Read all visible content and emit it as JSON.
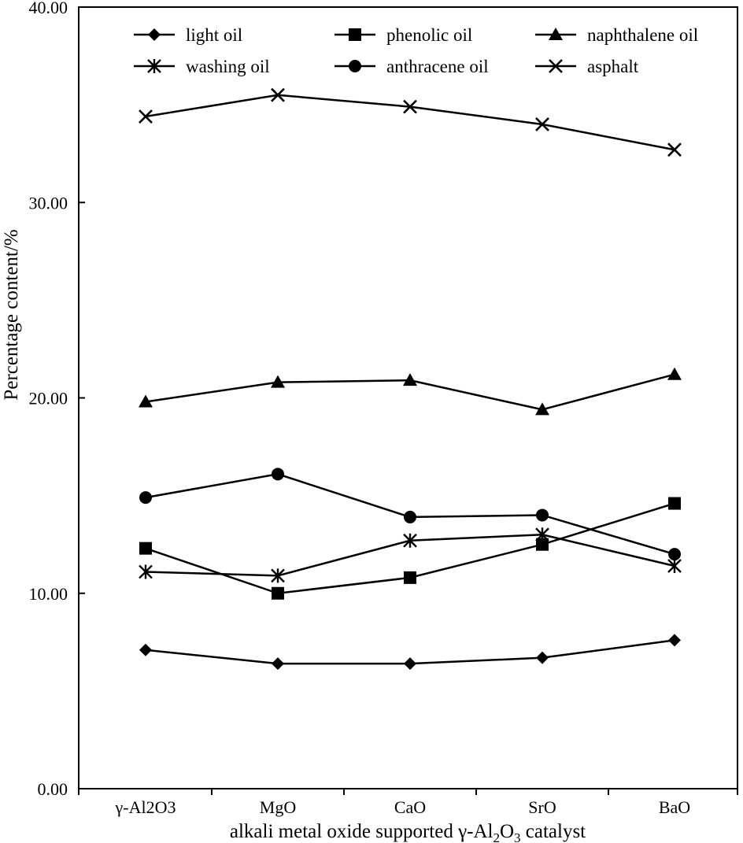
{
  "chart_data": {
    "type": "line",
    "title": "",
    "xlabel_parts": {
      "prefix": "alkali metal oxide supported γ-Al",
      "sub1": "2",
      "mid": "O",
      "sub2": "3",
      "suffix": " catalyst"
    },
    "ylabel": "Percentage content/%",
    "ylim": [
      0,
      40
    ],
    "yticks": [
      "0.00",
      "10.00",
      "20.00",
      "30.00",
      "40.00"
    ],
    "ytick_values": [
      0,
      10,
      20,
      30,
      40
    ],
    "categories": [
      "γ-Al2O3",
      "MgO",
      "CaO",
      "SrO",
      "BaO"
    ],
    "grid": false,
    "legend_position": "top",
    "series": [
      {
        "name": "light oil",
        "marker": "diamond",
        "values": [
          7.1,
          6.4,
          6.4,
          6.7,
          7.6
        ]
      },
      {
        "name": "phenolic oil",
        "marker": "square",
        "values": [
          12.3,
          10.0,
          10.8,
          12.5,
          14.6
        ]
      },
      {
        "name": "naphthalene oil",
        "marker": "triangle",
        "values": [
          19.8,
          20.8,
          20.9,
          19.4,
          21.2
        ]
      },
      {
        "name": "washing oil",
        "marker": "asterisk",
        "values": [
          11.1,
          10.9,
          12.7,
          13.0,
          11.4
        ]
      },
      {
        "name": "anthracene oil",
        "marker": "circle",
        "values": [
          14.9,
          16.1,
          13.9,
          14.0,
          12.0
        ]
      },
      {
        "name": "asphalt",
        "marker": "x",
        "values": [
          34.4,
          35.5,
          34.9,
          34.0,
          32.7
        ]
      }
    ]
  }
}
